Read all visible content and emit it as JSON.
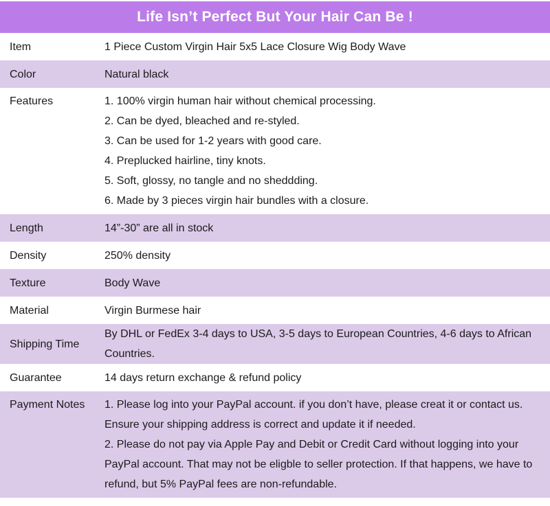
{
  "header": {
    "title": "Life Isn’t Perfect But Your Hair Can Be !"
  },
  "colors": {
    "banner_bg": "#bb7ce9",
    "banner_text": "#ffffff",
    "shaded_row_bg": "#dccae9",
    "plain_row_bg": "#ffffff",
    "body_text": "#1b1b1b"
  },
  "table": {
    "rows": [
      {
        "label": "Item",
        "shaded": false,
        "lines": [
          "1 Piece Custom Virgin Hair 5x5 Lace Closure Wig Body Wave"
        ]
      },
      {
        "label": "Color",
        "shaded": true,
        "lines": [
          "Natural black"
        ]
      },
      {
        "label": "Features",
        "shaded": false,
        "lines": [
          "1. 100% virgin human hair without chemical processing.",
          "2. Can be dyed, bleached and re-styled.",
          "3. Can be used for 1-2 years with good care.",
          "4. Preplucked hairline, tiny knots.",
          "5. Soft, glossy, no tangle and no sheddding.",
          "6. Made by 3 pieces virgin hair bundles with a closure."
        ]
      },
      {
        "label": "Length",
        "shaded": true,
        "lines": [
          "14”-30” are all in stock"
        ]
      },
      {
        "label": "Density",
        "shaded": false,
        "lines": [
          "250% density"
        ]
      },
      {
        "label": "Texture",
        "shaded": true,
        "lines": [
          "Body Wave"
        ]
      },
      {
        "label": "Material",
        "shaded": false,
        "lines": [
          "Virgin Burmese hair"
        ]
      },
      {
        "label": "Shipping Time",
        "shaded": true,
        "lines": [
          "By DHL or FedEx 3-4 days to USA, 3-5 days to European Countries, 4-6 days to African Countries."
        ]
      },
      {
        "label": "Guarantee",
        "shaded": false,
        "lines": [
          "14 days return exchange & refund policy"
        ]
      },
      {
        "label": "Payment Notes",
        "shaded": true,
        "lines": [
          "1. Please log into your PayPal account. if you don’t have, please creat it or contact us. Ensure your shipping address is correct and update it if needed.",
          "2. Please do not pay via Apple Pay and Debit or Credit Card without logging into your PayPal account. That may not be eligble to seller protection. If that happens, we have to refund, but 5% PayPal fees are non-refundable."
        ]
      }
    ]
  }
}
